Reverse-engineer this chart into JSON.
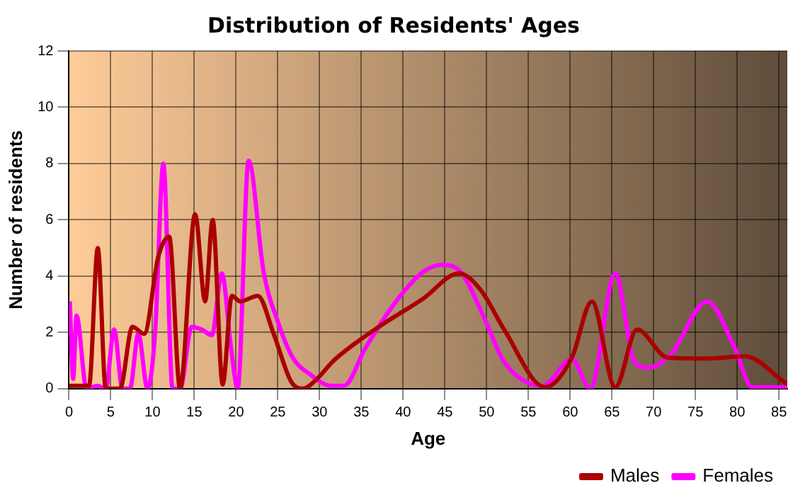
{
  "chart_data": {
    "type": "line",
    "title": "Distribution of Residents' Ages",
    "xlabel": "Age",
    "ylabel": "Number of residents",
    "xlim": [
      0,
      86
    ],
    "xticks": [
      0,
      5,
      10,
      15,
      20,
      25,
      30,
      35,
      40,
      45,
      50,
      55,
      60,
      65,
      70,
      75,
      80,
      85
    ],
    "ylim": [
      0,
      12
    ],
    "yticks": [
      0,
      2,
      4,
      6,
      8,
      10,
      12
    ],
    "grid": true,
    "legend": "bottom right",
    "marker": "none",
    "line_style": "solid",
    "series": [
      {
        "name": "Males",
        "color": "#aa0000",
        "x": [
          0,
          2.4,
          3.45,
          4.4,
          6.1,
          7.6,
          9.0,
          10.7,
          12.0,
          13.3,
          15.1,
          16.3,
          17.2,
          18.4,
          19.5,
          20.5,
          22.6,
          24.5,
          26.6,
          28.0,
          29.7,
          31.7,
          36.6,
          42.4,
          46.7,
          49.3,
          52.1,
          57.0,
          60.2,
          62.6,
          65.4,
          68.0,
          71.7,
          76.3,
          80.9,
          86.0
        ],
        "values": [
          0.1,
          0.1,
          5.0,
          0,
          0,
          2.2,
          1.95,
          4.7,
          5.4,
          0,
          6.2,
          3.1,
          6.0,
          0.15,
          3.3,
          3.1,
          3.3,
          1.95,
          0.25,
          0,
          0.35,
          1.0,
          2.1,
          3.2,
          4.1,
          3.5,
          2.1,
          0.05,
          1.1,
          3.1,
          0.05,
          2.1,
          1.1,
          1.07,
          1.15,
          0.15
        ]
      },
      {
        "name": "Females",
        "color": "#ff00ff",
        "x": [
          0.1,
          0.5,
          0.9,
          2.1,
          3.4,
          4.4,
          5.4,
          6.4,
          7.3,
          8.3,
          9.4,
          10.3,
          11.3,
          12.4,
          13.3,
          14.7,
          15.9,
          17.1,
          18.3,
          19.4,
          20.2,
          21.5,
          23.3,
          25.1,
          26.8,
          28.9,
          31.4,
          32.9,
          35.5,
          38.9,
          42.4,
          44.6,
          46.9,
          49.8,
          52.1,
          56.7,
          60.2,
          62.4,
          65.4,
          67.7,
          69.4,
          72.0,
          76.4,
          79.7,
          81.8,
          86.0
        ],
        "values": [
          3.1,
          0.35,
          2.6,
          0,
          0.1,
          0,
          2.1,
          0,
          0,
          1.95,
          0,
          1.95,
          8.0,
          0,
          0,
          2.2,
          2.1,
          1.9,
          4.1,
          1.45,
          0,
          8.1,
          4.15,
          2.3,
          1.1,
          0.5,
          0.1,
          0.1,
          1.45,
          3.0,
          4.15,
          4.4,
          4.15,
          2.45,
          0.95,
          0.1,
          1.05,
          0,
          4.1,
          0.95,
          0.75,
          1.2,
          3.1,
          1.45,
          0.05,
          0.05
        ]
      }
    ]
  }
}
